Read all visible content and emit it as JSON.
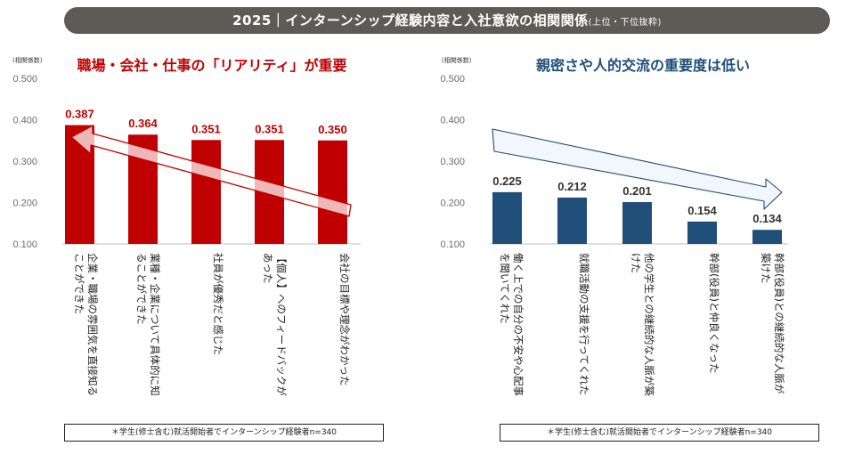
{
  "header": {
    "title": "2025｜インターンシップ経験内容と入社意欲の相関関係",
    "subtitle": "(上位・下位抜粋)"
  },
  "chart_data": [
    {
      "type": "bar",
      "title": "職場・会社・仕事の「リアリティ」が重要",
      "ylabel": "(相関係数)",
      "ylim": [
        0.1,
        0.5
      ],
      "yticks": [
        "0.100",
        "0.200",
        "0.300",
        "0.400",
        "0.500"
      ],
      "categories": [
        [
          "企業・職場の雰囲気を直接知る",
          "ことができた"
        ],
        [
          "業種・企業について具体的に知",
          "ることができた"
        ],
        [
          "社員が優秀だと感じた"
        ],
        [
          "【個人】へのフィードバックが",
          "あった"
        ],
        [
          "会社の目標や理念がわかった"
        ]
      ],
      "values": [
        0.387,
        0.364,
        0.351,
        0.351,
        0.35
      ],
      "labels": [
        "0.387",
        "0.364",
        "0.351",
        "0.351",
        "0.350"
      ],
      "color": "#c00000",
      "note": "＊学生(修士含む)就活開始者でインターンシップ経験者n=340"
    },
    {
      "type": "bar",
      "title": "親密さや人的交流の重要度は低い",
      "ylabel": "(相関係数)",
      "ylim": [
        0.1,
        0.5
      ],
      "yticks": [
        "0.100",
        "0.200",
        "0.300",
        "0.400",
        "0.500"
      ],
      "categories": [
        [
          "働く上での自分の不安や心配事",
          "を聞いてくれた"
        ],
        [
          "就職活動の支援を行ってくれた"
        ],
        [
          "他の学生との継続的な人脈が築",
          "けた"
        ],
        [
          "幹部(役員)と仲良くなった"
        ],
        [
          "幹部(役員)との継続的な人脈が",
          "築けた"
        ]
      ],
      "values": [
        0.225,
        0.212,
        0.201,
        0.154,
        0.134
      ],
      "labels": [
        "0.225",
        "0.212",
        "0.201",
        "0.154",
        "0.134"
      ],
      "color": "#1f4e79",
      "note": "＊学生(修士含む)就活開始者でインターンシップ経験者n=340"
    }
  ]
}
